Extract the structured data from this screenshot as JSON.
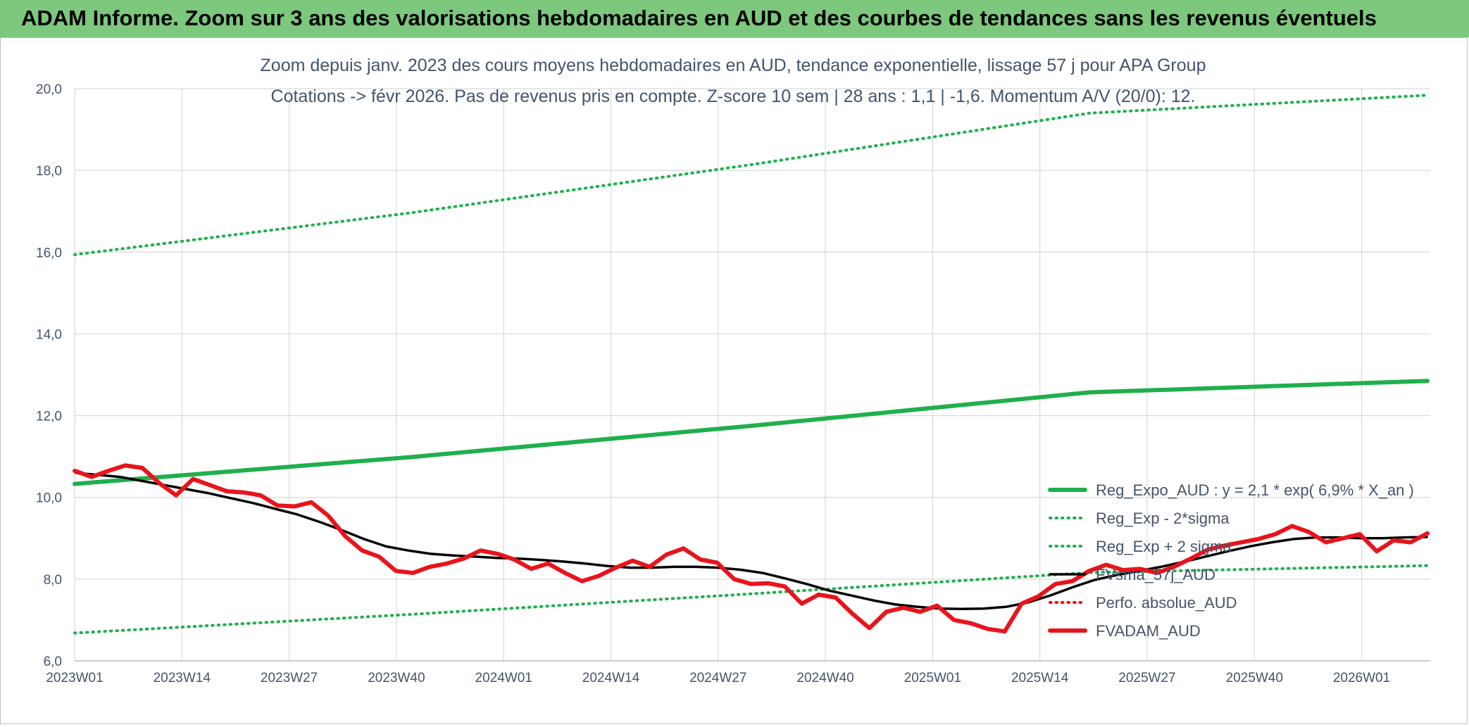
{
  "banner": {
    "title": "ADAM Informe. Zoom sur 3 ans des valorisations hebdomadaires en AUD et des courbes de tendances sans les revenus éventuels",
    "color": "#7cc87c"
  },
  "chart_data": {
    "type": "line",
    "title": "Zoom depuis janv. 2023 des cours moyens hebdomadaires en AUD, tendance exponentielle, lissage 57 j pour APA Group",
    "subtitle": "Cotations -> févr 2026. Pas de revenus pris en compte. Z-score 10 sem | 28 ans : 1,1 | -1,6. Momentum A/V (20/0): 12.",
    "ylim": [
      6,
      20
    ],
    "y_ticks": [
      "6,0",
      "8,0",
      "10,0",
      "12,0",
      "14,0",
      "16,0",
      "18,0",
      "20,0"
    ],
    "x_ticks": [
      "2023W01",
      "2023W14",
      "2023W27",
      "2023W40",
      "2024W01",
      "2024W14",
      "2024W27",
      "2024W40",
      "2025W01",
      "2025W14",
      "2025W27",
      "2025W40",
      "2026W01"
    ],
    "grid": true,
    "legend_position": "right",
    "series": [
      {
        "name": "Reg_Expo_AUD : y = 2,1 * exp( 6,9% *  X_an )",
        "style": "solid-thick",
        "color": "#1fb04c",
        "values": [
          10.33,
          10.99,
          11.75,
          12.57,
          12.85
        ]
      },
      {
        "name": "Reg_Exp - 2*sigma",
        "style": "dotted",
        "color": "#1fb04c",
        "values": [
          6.68,
          7.14,
          7.64,
          8.16,
          8.33
        ]
      },
      {
        "name": "Reg_Exp + 2 sigma",
        "style": "dotted",
        "color": "#1fb04c",
        "values": [
          15.94,
          16.97,
          18.14,
          19.4,
          19.84
        ]
      },
      {
        "name": "FVsma_57j_AUD",
        "style": "solid",
        "color": "#000000",
        "values": [
          10.6,
          10.55,
          10.5,
          10.4,
          10.3,
          10.2,
          10.1,
          9.98,
          9.86,
          9.72,
          9.58,
          9.4,
          9.2,
          8.98,
          8.8,
          8.7,
          8.62,
          8.58,
          8.55,
          8.52,
          8.5,
          8.47,
          8.43,
          8.38,
          8.32,
          8.28,
          8.28,
          8.3,
          8.3,
          8.28,
          8.23,
          8.15,
          8.02,
          7.88,
          7.72,
          7.6,
          7.48,
          7.38,
          7.32,
          7.28,
          7.27,
          7.28,
          7.32,
          7.43,
          7.6,
          7.8,
          7.98,
          8.1,
          8.2,
          8.3,
          8.42,
          8.55,
          8.68,
          8.8,
          8.9,
          8.98,
          9.02,
          9.02,
          9.0,
          9.0,
          9.02,
          9.03
        ]
      },
      {
        "name": "Perfo. absolue_AUD",
        "style": "dotted",
        "color": "#ff0000",
        "values": []
      },
      {
        "name": "FVADAM_AUD",
        "style": "solid-thick",
        "color": "#e8141c",
        "values": [
          10.65,
          10.5,
          10.65,
          10.78,
          10.72,
          10.35,
          10.05,
          10.45,
          10.3,
          10.15,
          10.12,
          10.05,
          9.8,
          9.78,
          9.88,
          9.55,
          9.05,
          8.7,
          8.55,
          8.2,
          8.15,
          8.3,
          8.38,
          8.5,
          8.7,
          8.62,
          8.48,
          8.25,
          8.38,
          8.15,
          7.95,
          8.08,
          8.28,
          8.45,
          8.3,
          8.6,
          8.75,
          8.48,
          8.4,
          8.0,
          7.88,
          7.9,
          7.82,
          7.4,
          7.62,
          7.55,
          7.15,
          6.8,
          7.2,
          7.3,
          7.2,
          7.35,
          7.0,
          6.92,
          6.78,
          6.72,
          7.4,
          7.58,
          7.88,
          7.95,
          8.2,
          8.35,
          8.22,
          8.25,
          8.15,
          8.3,
          8.5,
          8.72,
          8.82,
          8.9,
          8.98,
          9.1,
          9.3,
          9.15,
          8.9,
          9.0,
          9.1,
          8.68,
          8.95,
          8.9,
          9.12
        ]
      }
    ]
  }
}
